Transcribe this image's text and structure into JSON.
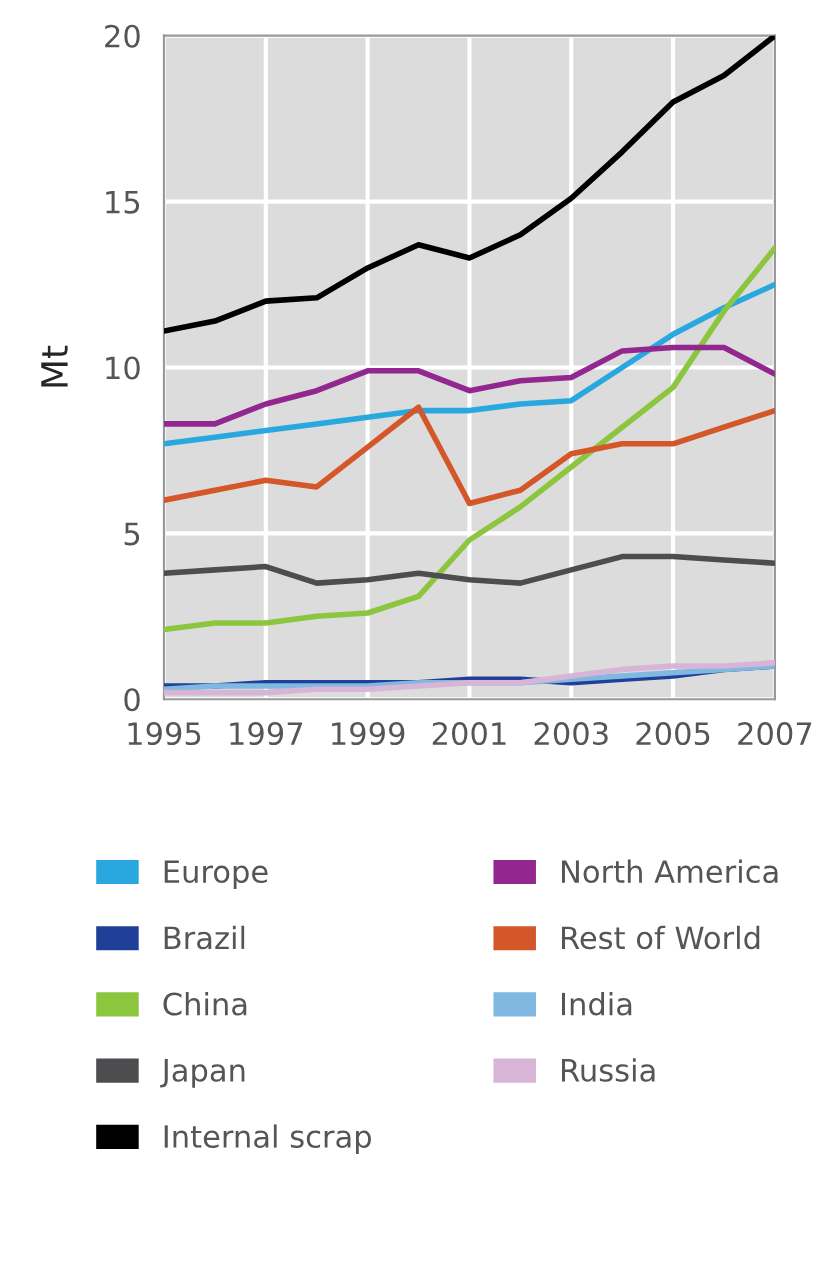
{
  "chart_data": {
    "type": "line",
    "ylabel": "Mt",
    "x": [
      1995,
      1996,
      1997,
      1998,
      1999,
      2000,
      2001,
      2002,
      2003,
      2004,
      2005,
      2006,
      2007
    ],
    "xlim": [
      1995,
      2007
    ],
    "xticks": [
      1995,
      1997,
      1999,
      2001,
      2003,
      2005,
      2007
    ],
    "ylim": [
      0,
      20
    ],
    "yticks": [
      0,
      5,
      10,
      15,
      20
    ],
    "grid": true,
    "legend": "bottom",
    "series": [
      {
        "name": "Europe",
        "color": "#29a8df",
        "values": [
          7.7,
          7.9,
          8.1,
          8.3,
          8.5,
          8.7,
          8.7,
          8.9,
          9.0,
          10.0,
          11.0,
          11.8,
          12.5
        ]
      },
      {
        "name": "Brazil",
        "color": "#1f3f99",
        "values": [
          0.4,
          0.4,
          0.5,
          0.5,
          0.5,
          0.5,
          0.6,
          0.6,
          0.5,
          0.6,
          0.7,
          0.9,
          1.0
        ]
      },
      {
        "name": "China",
        "color": "#8cc63f",
        "values": [
          2.1,
          2.3,
          2.3,
          2.5,
          2.6,
          3.1,
          4.8,
          5.8,
          7.0,
          8.2,
          9.4,
          11.7,
          13.6
        ]
      },
      {
        "name": "Japan",
        "color": "#4d4d4f",
        "values": [
          3.8,
          3.9,
          4.0,
          3.5,
          3.6,
          3.8,
          3.6,
          3.5,
          3.9,
          4.3,
          4.3,
          4.2,
          4.1
        ]
      },
      {
        "name": "Internal scrap",
        "color": "#000000",
        "values": [
          11.1,
          11.4,
          12.0,
          12.1,
          13.0,
          13.7,
          13.3,
          14.0,
          15.1,
          16.5,
          18.0,
          18.8,
          20.0
        ]
      },
      {
        "name": "North America",
        "color": "#92278f",
        "values": [
          8.3,
          8.3,
          8.9,
          9.3,
          9.9,
          9.9,
          9.3,
          9.6,
          9.7,
          10.5,
          10.6,
          10.6,
          9.8
        ]
      },
      {
        "name": "Rest of World",
        "color": "#d4572a",
        "values": [
          6.0,
          6.3,
          6.6,
          6.4,
          7.6,
          8.8,
          5.9,
          6.3,
          7.4,
          7.7,
          7.7,
          8.2,
          8.7
        ]
      },
      {
        "name": "India",
        "color": "#7fb8e0",
        "values": [
          0.3,
          0.4,
          0.4,
          0.4,
          0.4,
          0.5,
          0.5,
          0.5,
          0.6,
          0.7,
          0.8,
          0.9,
          1.0
        ]
      },
      {
        "name": "Russia",
        "color": "#d8b4d6",
        "values": [
          0.2,
          0.2,
          0.2,
          0.3,
          0.3,
          0.4,
          0.5,
          0.5,
          0.7,
          0.9,
          1.0,
          1.0,
          1.1
        ]
      }
    ]
  }
}
